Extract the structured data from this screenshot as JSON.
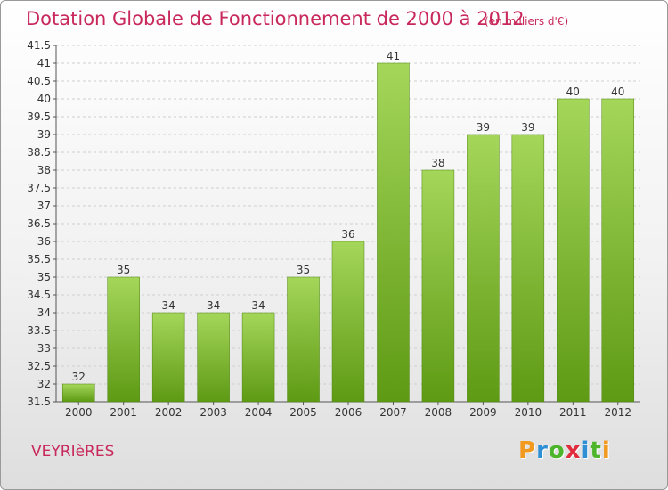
{
  "header": {
    "title": "Dotation Globale de Fonctionnement de 2000 à 2012",
    "unit": "(en milliers d'€)"
  },
  "footer": {
    "commune": "VEYRIèRES",
    "logo": "Proxiti"
  },
  "colors": {
    "title": "#c8285c",
    "bar_light": "#a4d65a",
    "bar_dark": "#5e9a14",
    "grid": "#cfcfcf"
  },
  "chart_data": {
    "type": "bar",
    "title": "Dotation Globale de Fonctionnement de 2000 à 2012",
    "subtitle": "(en milliers d'€)",
    "xlabel": "",
    "ylabel": "",
    "categories": [
      "2000",
      "2001",
      "2002",
      "2003",
      "2004",
      "2005",
      "2006",
      "2007",
      "2008",
      "2009",
      "2010",
      "2011",
      "2012"
    ],
    "values": [
      32,
      35,
      34,
      34,
      34,
      35,
      36,
      41,
      38,
      39,
      39,
      40,
      40
    ],
    "ylim": [
      31.5,
      41.5
    ],
    "yticks": [
      "31.5",
      "32",
      "32.5",
      "33",
      "33.5",
      "34",
      "34.5",
      "35",
      "35.5",
      "36",
      "36.5",
      "37",
      "37.5",
      "38",
      "38.5",
      "39",
      "39.5",
      "40",
      "40.5",
      "41",
      "41.5"
    ],
    "grid": true
  }
}
